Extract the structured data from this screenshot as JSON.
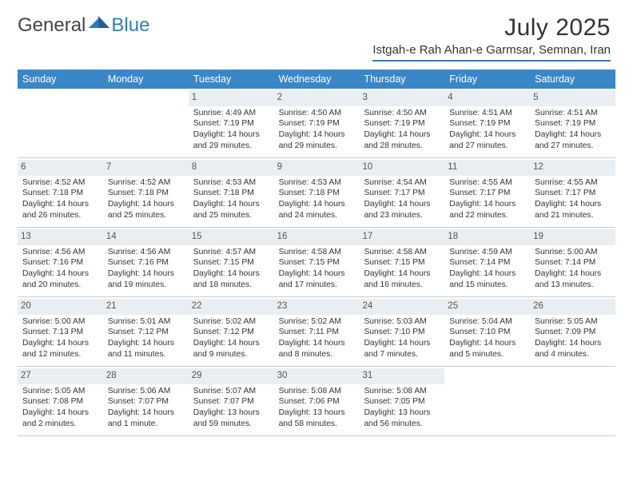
{
  "brand": {
    "general": "General",
    "blue": "Blue"
  },
  "title": "July 2025",
  "location": "Istgah-e Rah Ahan-e Garmsar, Semnan, Iran",
  "colors": {
    "header_bar": "#3b86c7",
    "daynum_bg": "#e9eef2",
    "rule": "#c9c9c9",
    "accent": "#357ab8",
    "text": "#333333"
  },
  "weekdays": [
    "Sunday",
    "Monday",
    "Tuesday",
    "Wednesday",
    "Thursday",
    "Friday",
    "Saturday"
  ],
  "weeks": [
    [
      null,
      null,
      {
        "n": "1",
        "sr": "4:49 AM",
        "ss": "7:19 PM",
        "dl": "14 hours and 29 minutes."
      },
      {
        "n": "2",
        "sr": "4:50 AM",
        "ss": "7:19 PM",
        "dl": "14 hours and 29 minutes."
      },
      {
        "n": "3",
        "sr": "4:50 AM",
        "ss": "7:19 PM",
        "dl": "14 hours and 28 minutes."
      },
      {
        "n": "4",
        "sr": "4:51 AM",
        "ss": "7:19 PM",
        "dl": "14 hours and 27 minutes."
      },
      {
        "n": "5",
        "sr": "4:51 AM",
        "ss": "7:19 PM",
        "dl": "14 hours and 27 minutes."
      }
    ],
    [
      {
        "n": "6",
        "sr": "4:52 AM",
        "ss": "7:18 PM",
        "dl": "14 hours and 26 minutes."
      },
      {
        "n": "7",
        "sr": "4:52 AM",
        "ss": "7:18 PM",
        "dl": "14 hours and 25 minutes."
      },
      {
        "n": "8",
        "sr": "4:53 AM",
        "ss": "7:18 PM",
        "dl": "14 hours and 25 minutes."
      },
      {
        "n": "9",
        "sr": "4:53 AM",
        "ss": "7:18 PM",
        "dl": "14 hours and 24 minutes."
      },
      {
        "n": "10",
        "sr": "4:54 AM",
        "ss": "7:17 PM",
        "dl": "14 hours and 23 minutes."
      },
      {
        "n": "11",
        "sr": "4:55 AM",
        "ss": "7:17 PM",
        "dl": "14 hours and 22 minutes."
      },
      {
        "n": "12",
        "sr": "4:55 AM",
        "ss": "7:17 PM",
        "dl": "14 hours and 21 minutes."
      }
    ],
    [
      {
        "n": "13",
        "sr": "4:56 AM",
        "ss": "7:16 PM",
        "dl": "14 hours and 20 minutes."
      },
      {
        "n": "14",
        "sr": "4:56 AM",
        "ss": "7:16 PM",
        "dl": "14 hours and 19 minutes."
      },
      {
        "n": "15",
        "sr": "4:57 AM",
        "ss": "7:15 PM",
        "dl": "14 hours and 18 minutes."
      },
      {
        "n": "16",
        "sr": "4:58 AM",
        "ss": "7:15 PM",
        "dl": "14 hours and 17 minutes."
      },
      {
        "n": "17",
        "sr": "4:58 AM",
        "ss": "7:15 PM",
        "dl": "14 hours and 16 minutes."
      },
      {
        "n": "18",
        "sr": "4:59 AM",
        "ss": "7:14 PM",
        "dl": "14 hours and 15 minutes."
      },
      {
        "n": "19",
        "sr": "5:00 AM",
        "ss": "7:14 PM",
        "dl": "14 hours and 13 minutes."
      }
    ],
    [
      {
        "n": "20",
        "sr": "5:00 AM",
        "ss": "7:13 PM",
        "dl": "14 hours and 12 minutes."
      },
      {
        "n": "21",
        "sr": "5:01 AM",
        "ss": "7:12 PM",
        "dl": "14 hours and 11 minutes."
      },
      {
        "n": "22",
        "sr": "5:02 AM",
        "ss": "7:12 PM",
        "dl": "14 hours and 9 minutes."
      },
      {
        "n": "23",
        "sr": "5:02 AM",
        "ss": "7:11 PM",
        "dl": "14 hours and 8 minutes."
      },
      {
        "n": "24",
        "sr": "5:03 AM",
        "ss": "7:10 PM",
        "dl": "14 hours and 7 minutes."
      },
      {
        "n": "25",
        "sr": "5:04 AM",
        "ss": "7:10 PM",
        "dl": "14 hours and 5 minutes."
      },
      {
        "n": "26",
        "sr": "5:05 AM",
        "ss": "7:09 PM",
        "dl": "14 hours and 4 minutes."
      }
    ],
    [
      {
        "n": "27",
        "sr": "5:05 AM",
        "ss": "7:08 PM",
        "dl": "14 hours and 2 minutes."
      },
      {
        "n": "28",
        "sr": "5:06 AM",
        "ss": "7:07 PM",
        "dl": "14 hours and 1 minute."
      },
      {
        "n": "29",
        "sr": "5:07 AM",
        "ss": "7:07 PM",
        "dl": "13 hours and 59 minutes."
      },
      {
        "n": "30",
        "sr": "5:08 AM",
        "ss": "7:06 PM",
        "dl": "13 hours and 58 minutes."
      },
      {
        "n": "31",
        "sr": "5:08 AM",
        "ss": "7:05 PM",
        "dl": "13 hours and 56 minutes."
      },
      null,
      null
    ]
  ],
  "labels": {
    "sunrise": "Sunrise:",
    "sunset": "Sunset:",
    "daylight": "Daylight:"
  }
}
